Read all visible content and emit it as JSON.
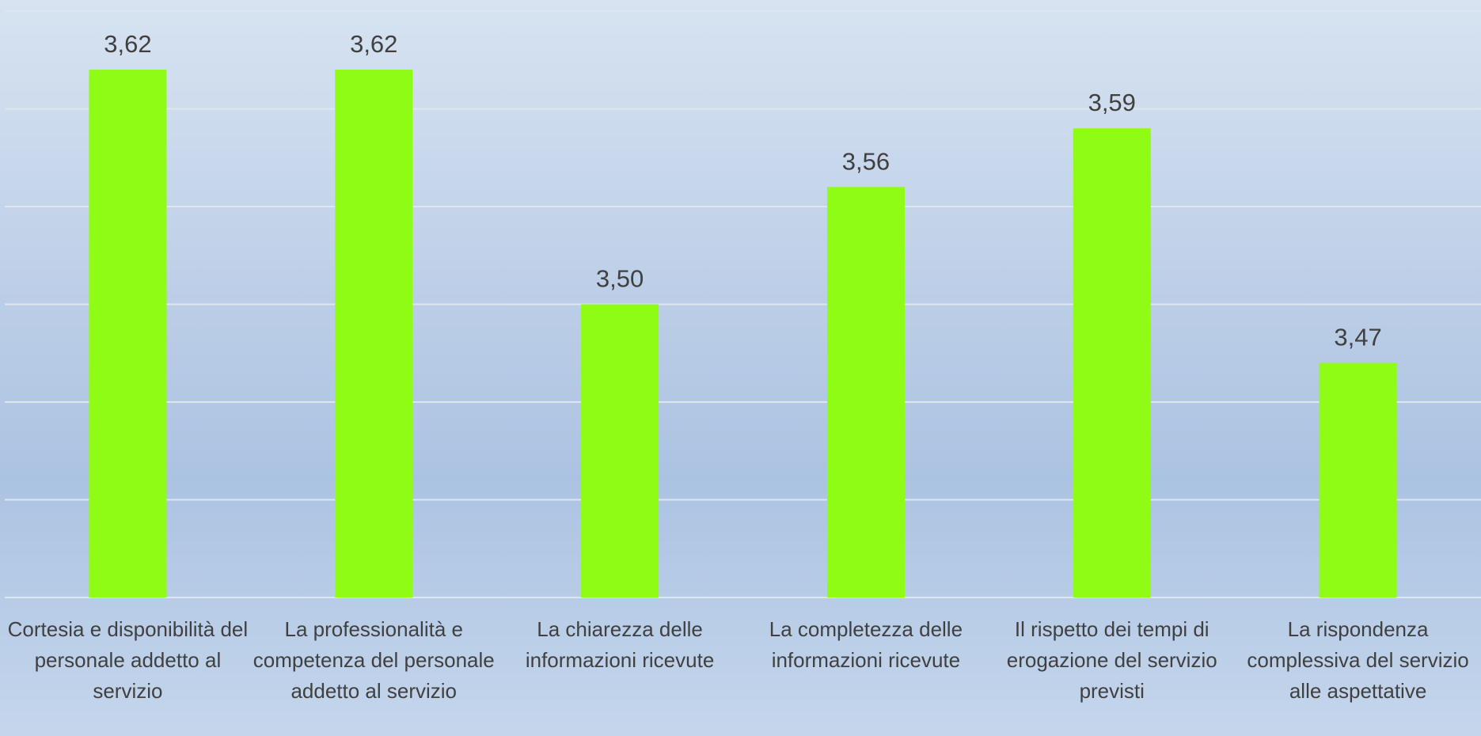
{
  "chart_data": {
    "type": "bar",
    "categories": [
      "Cortesia e disponibilità del personale addetto al servizio",
      "La professionalità e competenza del personale addetto al servizio",
      "La chiarezza delle informazioni ricevute",
      "La completezza delle informazioni ricevute",
      "Il rispetto dei tempi di erogazione del servizio previsti",
      "La rispondenza complessiva del servizio alle aspettative"
    ],
    "values": [
      3.62,
      3.62,
      3.5,
      3.56,
      3.59,
      3.47
    ],
    "value_labels": [
      "3,62",
      "3,62",
      "3,50",
      "3,56",
      "3,59",
      "3,47"
    ],
    "color": "#8efc14",
    "ylim": [
      3.35,
      3.65
    ],
    "yticks": [
      3.35,
      3.4,
      3.45,
      3.5,
      3.55,
      3.6,
      3.65
    ],
    "grid": true
  }
}
